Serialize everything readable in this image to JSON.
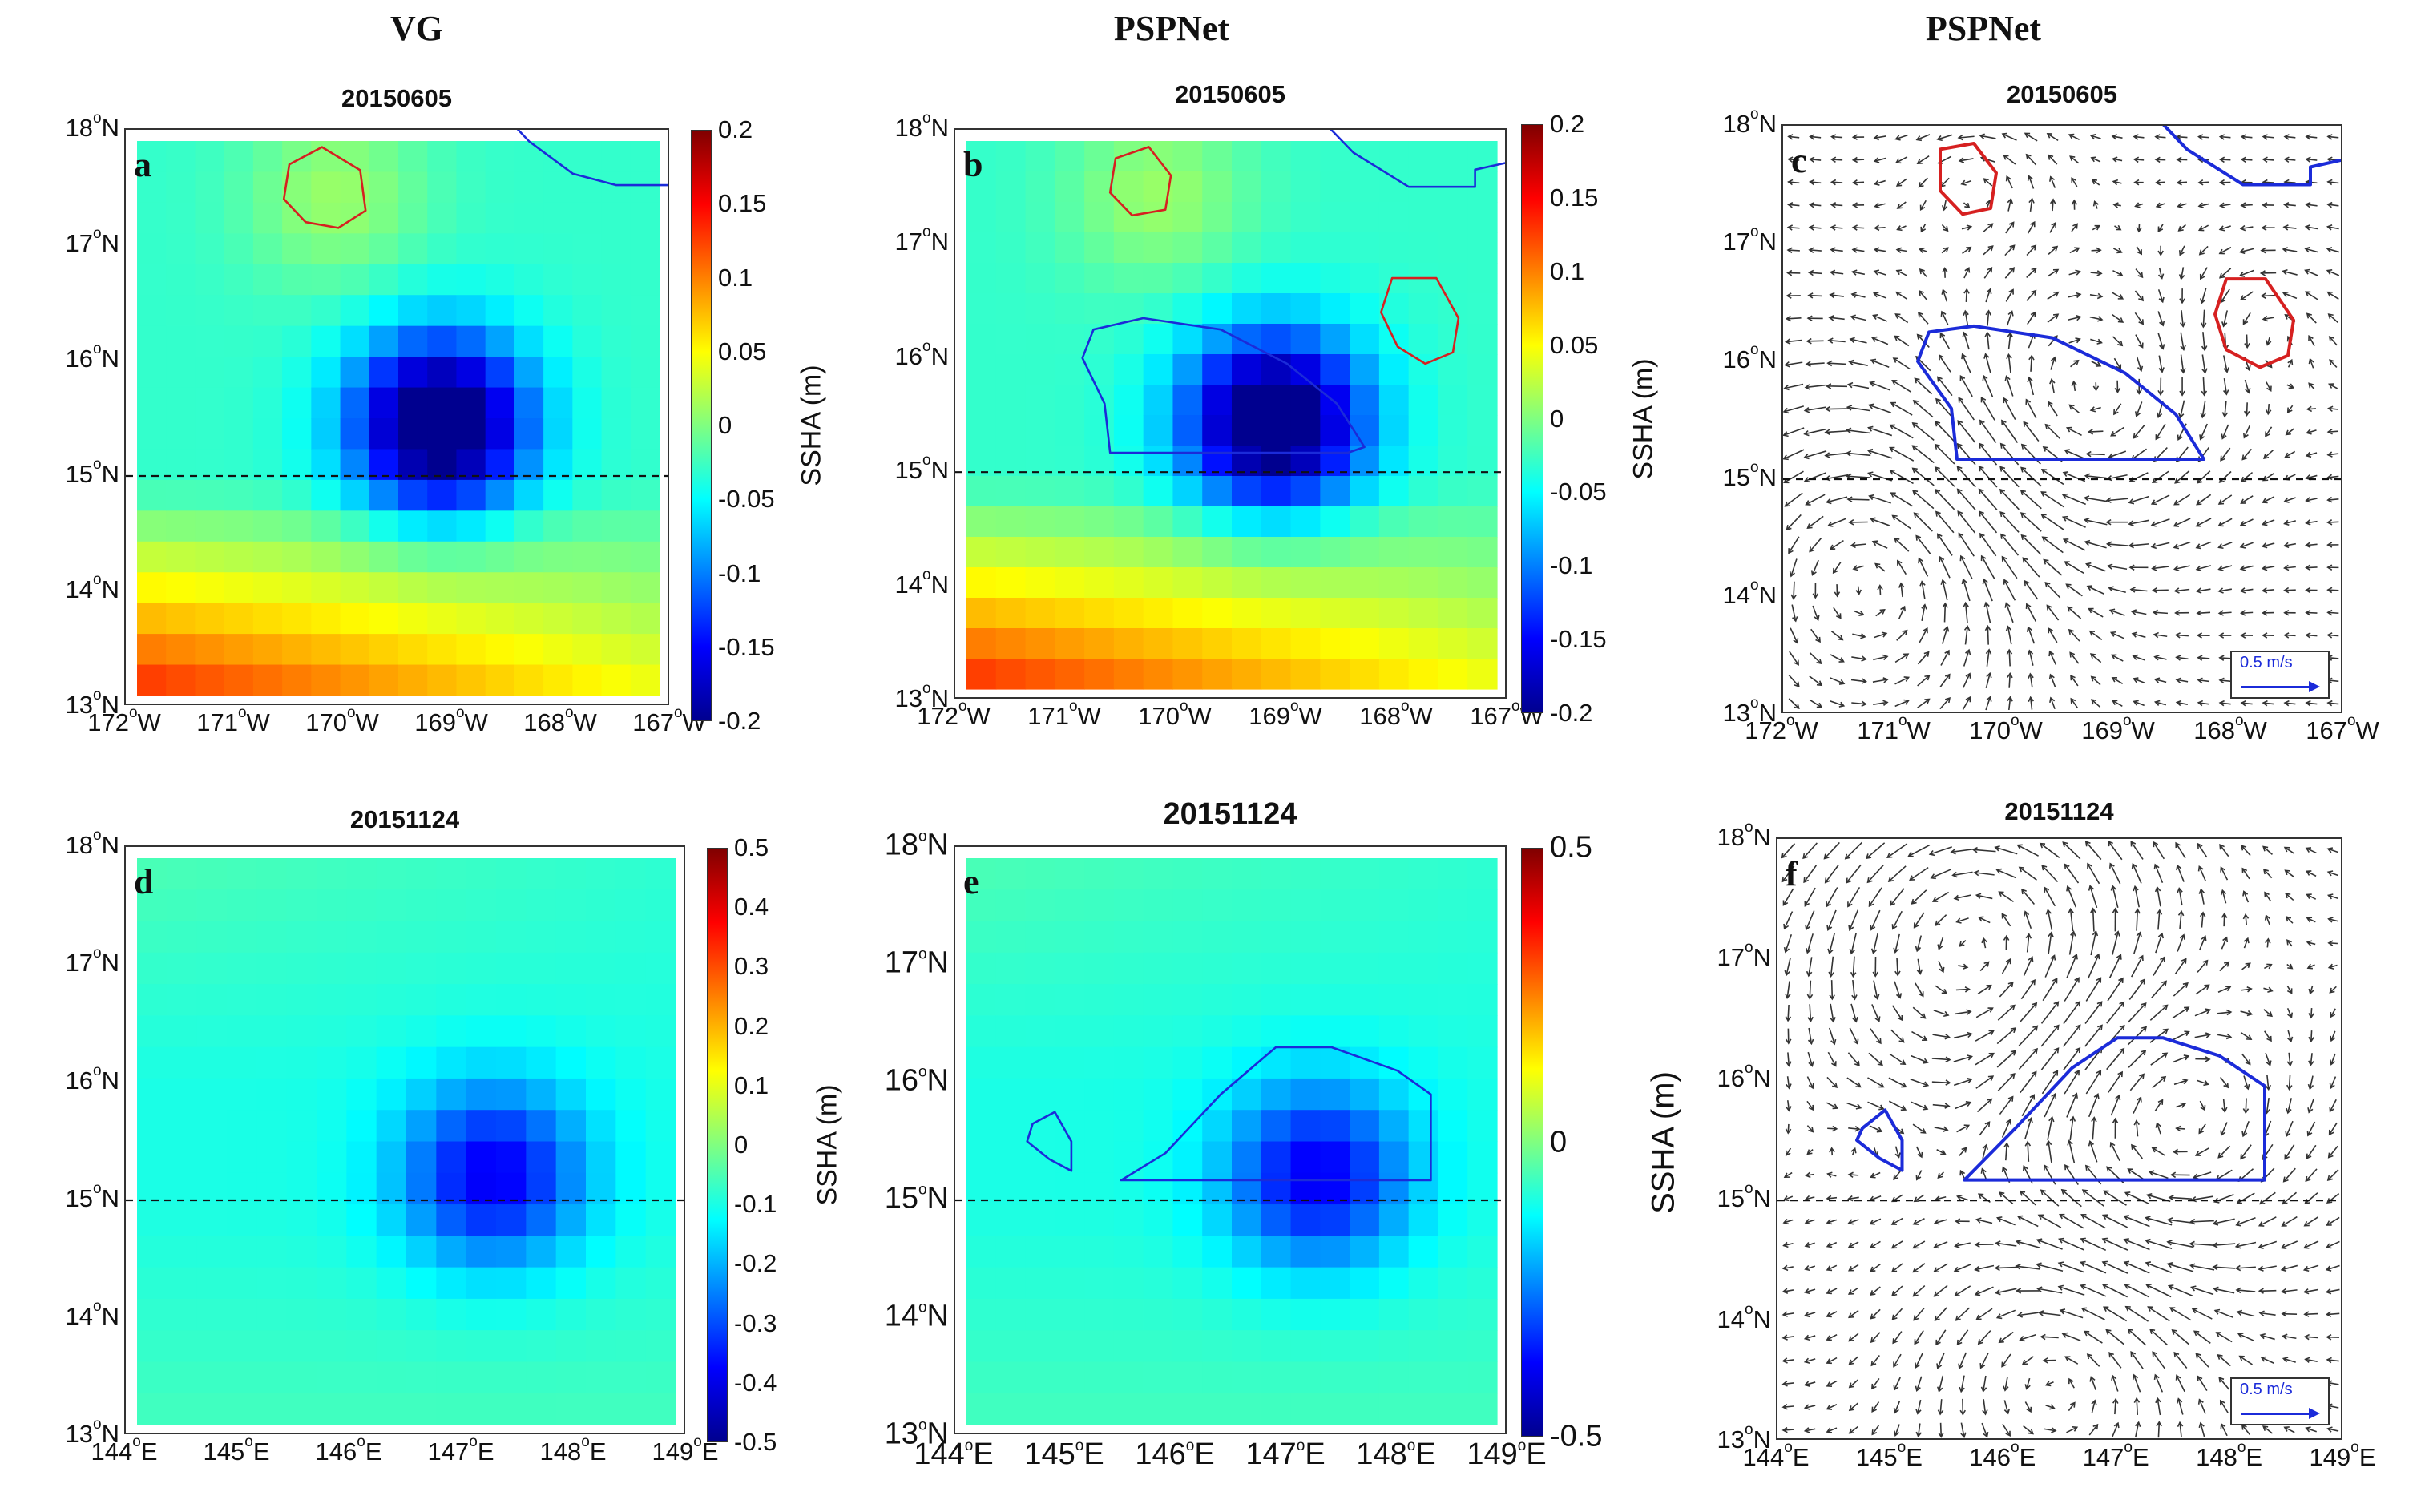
{
  "columns": [
    {
      "title": "VG",
      "x": 520
    },
    {
      "title": "PSPNet",
      "x": 1462
    },
    {
      "title": "PSPNet",
      "x": 2475
    }
  ],
  "colorbar": {
    "label": "SSHA (m)"
  },
  "quiver_scale": {
    "label": "0.5 m/s"
  },
  "panels": [
    {
      "id": "a",
      "letter": "a",
      "title": "20150605",
      "type": "field",
      "row": "top",
      "x_ticks": [
        "172°W",
        "171°W",
        "170°W",
        "169°W",
        "168°W",
        "167°W"
      ],
      "y_ticks": [
        "18°N",
        "17°N",
        "16°N",
        "15°N",
        "14°N",
        "13°N"
      ],
      "colorbar_ticks": [
        "0.2",
        "0.15",
        "0.1",
        "0.05",
        "0",
        "-0.05",
        "-0.1",
        "-0.15",
        "-0.2"
      ],
      "chart_data": {
        "type": "heatmap",
        "variable": "SSHA (m)",
        "clim": [
          -0.2,
          0.2
        ],
        "xlim": [
          -172,
          -167
        ],
        "ylim": [
          13,
          18
        ],
        "reference_line_lat": 15,
        "features": [
          {
            "kind": "anticyclonic_eddy",
            "center": [
              -170.1,
              17.5
            ],
            "amplitude": 0.04
          },
          {
            "kind": "cyclonic_eddy",
            "center": [
              -169.1,
              15.45
            ],
            "amplitude": -0.21
          }
        ],
        "background": {
          "base": -0.03,
          "south_high": 0.17
        }
      }
    },
    {
      "id": "b",
      "letter": "b",
      "title": "20150605",
      "type": "field",
      "row": "top",
      "x_ticks": [
        "172°W",
        "171°W",
        "170°W",
        "169°W",
        "168°W",
        "167°W"
      ],
      "y_ticks": [
        "18°N",
        "17°N",
        "16°N",
        "15°N",
        "14°N",
        "13°N"
      ],
      "colorbar_ticks": [
        "0.2",
        "0.15",
        "0.1",
        "0.05",
        "0",
        "-0.05",
        "-0.1",
        "-0.15",
        "-0.2"
      ],
      "chart_data": {
        "type": "heatmap",
        "variable": "SSHA (m)",
        "clim": [
          -0.2,
          0.2
        ],
        "xlim": [
          -172,
          -167
        ],
        "ylim": [
          13,
          18
        ],
        "reference_line_lat": 15,
        "features": [
          {
            "kind": "anticyclonic_eddy",
            "center": [
              -170.2,
              17.5
            ],
            "amplitude": 0.04
          },
          {
            "kind": "cyclonic_eddy",
            "center": [
              -169.1,
              15.45
            ],
            "amplitude": -0.21
          }
        ],
        "background": {
          "base": -0.03,
          "south_high": 0.17
        }
      }
    },
    {
      "id": "c",
      "letter": "c",
      "title": "20150605",
      "type": "quiver",
      "row": "top",
      "x_ticks": [
        "172°W",
        "171°W",
        "170°W",
        "169°W",
        "168°W",
        "167°W"
      ],
      "y_ticks": [
        "18°N",
        "17°N",
        "16°N",
        "15°N",
        "14°N",
        "13°N"
      ],
      "chart_data": {
        "type": "quiver",
        "variable": "geostrophic velocity",
        "scale_m_s": 0.5,
        "xlim": [
          -172,
          -167
        ],
        "ylim": [
          13,
          18
        ],
        "reference_line_lat": 15
      }
    },
    {
      "id": "d",
      "letter": "d",
      "title": "20151124",
      "type": "field",
      "row": "bottom",
      "x_ticks": [
        "144°E",
        "145°E",
        "146°E",
        "147°E",
        "148°E",
        "149°E"
      ],
      "y_ticks": [
        "18°N",
        "17°N",
        "16°N",
        "15°N",
        "14°N",
        "13°N"
      ],
      "colorbar_ticks": [
        "0.5",
        "0.4",
        "0.3",
        "0.2",
        "0.1",
        "0",
        "-0.1",
        "-0.2",
        "-0.3",
        "-0.4",
        "-0.5"
      ],
      "chart_data": {
        "type": "heatmap",
        "variable": "SSHA (m)",
        "clim": [
          -0.5,
          0.5
        ],
        "xlim": [
          144,
          149
        ],
        "ylim": [
          13,
          18
        ],
        "reference_line_lat": 15,
        "features": [
          {
            "kind": "cyclonic_eddy",
            "center": [
              147.3,
              15.2
            ],
            "amplitude": -0.29
          }
        ],
        "background": {
          "base": -0.1,
          "north_high": 0.05
        }
      }
    },
    {
      "id": "e",
      "letter": "e",
      "title": "20151124",
      "type": "field",
      "row": "bottom",
      "x_ticks": [
        "144°E",
        "145°E",
        "146°E",
        "147°E",
        "148°E",
        "149°E"
      ],
      "y_ticks": [
        "18°N",
        "17°N",
        "16°N",
        "15°N",
        "14°N",
        "13°N"
      ],
      "colorbar_ticks": [
        "0.5",
        "0",
        "-0.5"
      ],
      "chart_data": {
        "type": "heatmap",
        "variable": "SSHA (m)",
        "clim": [
          -0.5,
          0.5
        ],
        "xlim": [
          144,
          149
        ],
        "ylim": [
          13,
          18
        ],
        "reference_line_lat": 15,
        "features": [
          {
            "kind": "cyclonic_eddy",
            "center": [
              147.3,
              15.2
            ],
            "amplitude": -0.29
          }
        ],
        "background": {
          "base": -0.1,
          "north_high": 0.05
        }
      }
    },
    {
      "id": "f",
      "letter": "f",
      "title": "20151124",
      "type": "quiver",
      "row": "bottom",
      "x_ticks": [
        "144°E",
        "145°E",
        "146°E",
        "147°E",
        "148°E",
        "149°E"
      ],
      "y_ticks": [
        "18°N",
        "17°N",
        "16°N",
        "15°N",
        "14°N",
        "13°N"
      ],
      "chart_data": {
        "type": "quiver",
        "variable": "geostrophic velocity",
        "scale_m_s": 0.5,
        "xlim": [
          144,
          149
        ],
        "ylim": [
          13,
          18
        ],
        "reference_line_lat": 15
      }
    }
  ],
  "colors": {
    "anticyclonic_contour": "#d62020",
    "cyclonic_contour": "#1b2bd9",
    "dashed_line": "#111111",
    "arrow": "#333333"
  }
}
